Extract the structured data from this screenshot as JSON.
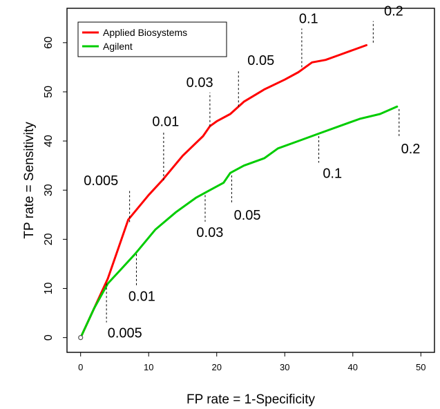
{
  "chart_data": {
    "type": "line",
    "title": "",
    "xlabel": "FP rate = 1-Specificity",
    "ylabel": "TP rate = Sensitivity",
    "xlim": [
      -2,
      52
    ],
    "ylim": [
      -3,
      67
    ],
    "x_ticks": [
      "0",
      "10",
      "20",
      "30",
      "40",
      "50"
    ],
    "y_ticks": [
      "0",
      "10",
      "20",
      "30",
      "40",
      "50",
      "60"
    ],
    "grid": false,
    "legend": "top-left",
    "series": [
      {
        "name": "Applied Biosystems",
        "color": "#ff0000",
        "points": [
          [
            0,
            0
          ],
          [
            2,
            6
          ],
          [
            4,
            12
          ],
          [
            7,
            24
          ],
          [
            10,
            29
          ],
          [
            12,
            32
          ],
          [
            15,
            37
          ],
          [
            18,
            41
          ],
          [
            19,
            43
          ],
          [
            20,
            44
          ],
          [
            22,
            45.5
          ],
          [
            24,
            48
          ],
          [
            27,
            50.5
          ],
          [
            30,
            52.5
          ],
          [
            32,
            54
          ],
          [
            34,
            56
          ],
          [
            36,
            56.5
          ],
          [
            38,
            57.5
          ],
          [
            40,
            58.5
          ],
          [
            42,
            59.5
          ]
        ],
        "annotations": [
          {
            "label": "0.005",
            "x": 7.2,
            "y": 23.5,
            "label_x": 3,
            "label_y": 31
          },
          {
            "label": "0.01",
            "x": 12.2,
            "y": 32,
            "label_x": 12.5,
            "label_y": 43
          },
          {
            "label": "0.03",
            "x": 19,
            "y": 43,
            "label_x": 17.5,
            "label_y": 51
          },
          {
            "label": "0.05",
            "x": 23.2,
            "y": 47,
            "label_x": 26.5,
            "label_y": 55.5
          },
          {
            "label": "0.1",
            "x": 32.5,
            "y": 55,
            "label_x": 33.5,
            "label_y": 64
          },
          {
            "label": "0.2",
            "x": 43,
            "y": 60,
            "label_x": 46,
            "label_y": 65.5
          }
        ]
      },
      {
        "name": "Agilent",
        "color": "#00cc00",
        "points": [
          [
            0,
            0
          ],
          [
            2,
            6
          ],
          [
            4,
            11
          ],
          [
            6,
            14
          ],
          [
            8,
            17
          ],
          [
            11,
            22
          ],
          [
            14,
            25.5
          ],
          [
            17,
            28.5
          ],
          [
            19,
            30
          ],
          [
            21,
            31.5
          ],
          [
            22,
            33.5
          ],
          [
            24,
            35
          ],
          [
            27,
            36.5
          ],
          [
            29,
            38.5
          ],
          [
            32,
            40
          ],
          [
            35,
            41.5
          ],
          [
            38,
            43
          ],
          [
            41,
            44.5
          ],
          [
            44,
            45.5
          ],
          [
            46.5,
            47
          ]
        ],
        "annotations": [
          {
            "label": "0.005",
            "x": 3.8,
            "y": 11,
            "label_x": 6.5,
            "label_y": 0
          },
          {
            "label": "0.01",
            "x": 8.2,
            "y": 17,
            "label_x": 9,
            "label_y": 7.5
          },
          {
            "label": "0.03",
            "x": 18.3,
            "y": 29,
            "label_x": 19,
            "label_y": 20.5
          },
          {
            "label": "0.05",
            "x": 22.2,
            "y": 33,
            "label_x": 24.5,
            "label_y": 24
          },
          {
            "label": "0.1",
            "x": 35,
            "y": 41,
            "label_x": 37,
            "label_y": 32.5
          },
          {
            "label": "0.2",
            "x": 46.8,
            "y": 46.5,
            "label_x": 48.5,
            "label_y": 37.5
          }
        ]
      }
    ]
  }
}
